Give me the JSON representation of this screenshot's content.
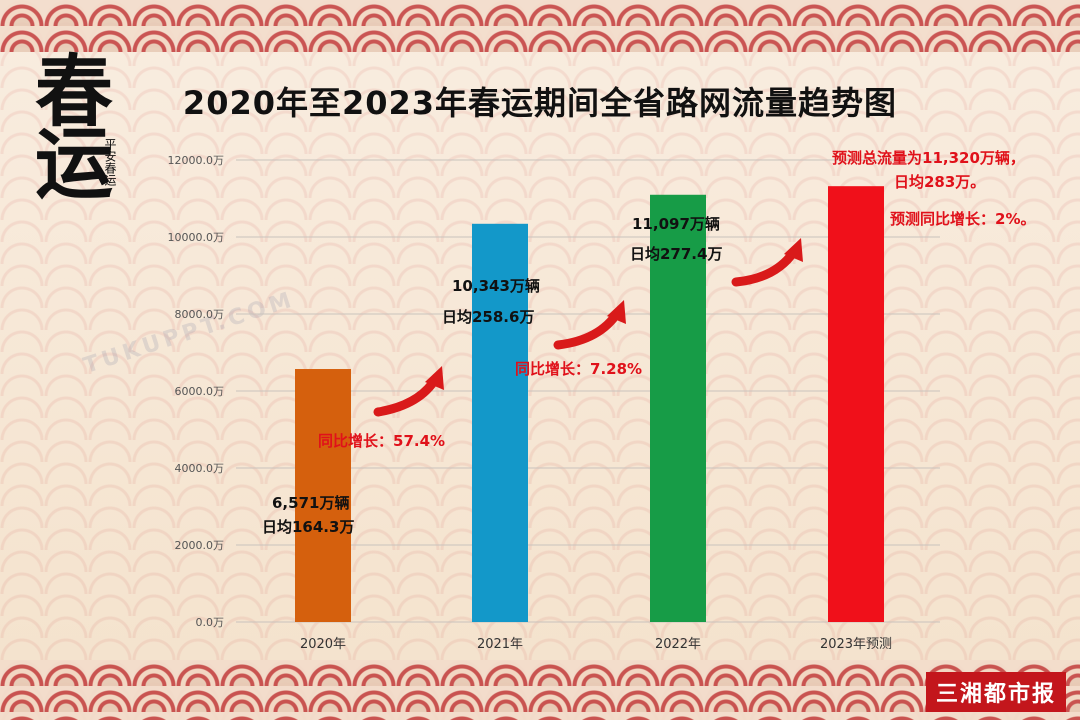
{
  "title": "2020年至2023年春运期间全省路网流量趋势图",
  "logo": {
    "main": "春运",
    "sub": "平安春运"
  },
  "watermark": "TUKUPPT.COM",
  "brand": "三湘都市报",
  "colors": {
    "bar_2020": "#d5600d",
    "bar_2021": "#1398c9",
    "bar_2022": "#179c47",
    "bar_2023": "#f0101a",
    "annotation_red": "#e0111a",
    "arrow": "#d91a1a"
  },
  "chart_data": {
    "type": "bar",
    "title": "2020年至2023年春运期间全省路网流量趋势图",
    "categories": [
      "2020年",
      "2021年",
      "2022年",
      "2023年预测"
    ],
    "values": [
      6571,
      10343,
      11097,
      11320
    ],
    "unit": "万辆",
    "ylim": [
      0,
      12000
    ],
    "yticks": [
      "0.0万",
      "2000.0万",
      "4000.0万",
      "6000.0万",
      "8000.0万",
      "10000.0万",
      "12000.0万"
    ],
    "ytick_values": [
      0,
      2000,
      4000,
      6000,
      8000,
      10000,
      12000
    ],
    "grid": true,
    "annotations": {
      "a2020_total": "6,571万辆",
      "a2020_daily": "日均164.3万",
      "a2021_growth": "同比增长：57.4%",
      "a2021_total": "10,343万辆",
      "a2021_daily": "日均258.6万",
      "a2022_growth": "同比增长：7.28%",
      "a2022_total": "11,097万辆",
      "a2022_daily": "日均277.4万",
      "a2023_total": "预测总流量为11,320万辆，",
      "a2023_daily": "日均283万。",
      "a2023_growth": "预测同比增长：2%。"
    }
  }
}
